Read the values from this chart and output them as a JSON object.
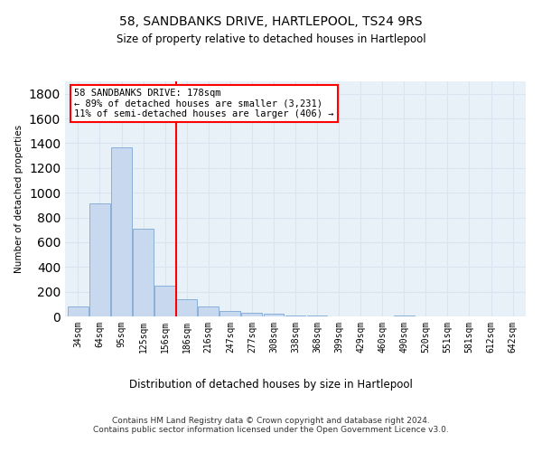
{
  "title": "58, SANDBANKS DRIVE, HARTLEPOOL, TS24 9RS",
  "subtitle": "Size of property relative to detached houses in Hartlepool",
  "xlabel": "Distribution of detached houses by size in Hartlepool",
  "ylabel": "Number of detached properties",
  "bar_color": "#c8d8ee",
  "bar_edge_color": "#8ab0d8",
  "categories": [
    "34sqm",
    "64sqm",
    "95sqm",
    "125sqm",
    "156sqm",
    "186sqm",
    "216sqm",
    "247sqm",
    "277sqm",
    "308sqm",
    "338sqm",
    "368sqm",
    "399sqm",
    "429sqm",
    "460sqm",
    "490sqm",
    "520sqm",
    "551sqm",
    "581sqm",
    "612sqm",
    "642sqm"
  ],
  "values": [
    80,
    910,
    1370,
    710,
    245,
    140,
    80,
    45,
    30,
    20,
    10,
    5,
    0,
    0,
    0,
    5,
    0,
    0,
    0,
    0,
    0
  ],
  "ylim": [
    0,
    1900
  ],
  "yticks": [
    0,
    200,
    400,
    600,
    800,
    1000,
    1200,
    1400,
    1600,
    1800
  ],
  "annotation_title": "58 SANDBANKS DRIVE: 178sqm",
  "annotation_line1": "← 89% of detached houses are smaller (3,231)",
  "annotation_line2": "11% of semi-detached houses are larger (406) →",
  "annotation_box_color": "white",
  "annotation_box_edge": "red",
  "vline_color": "red",
  "grid_color": "#d8e4f0",
  "background_color": "#e8f0f8",
  "footer_line1": "Contains HM Land Registry data © Crown copyright and database right 2024.",
  "footer_line2": "Contains public sector information licensed under the Open Government Licence v3.0."
}
